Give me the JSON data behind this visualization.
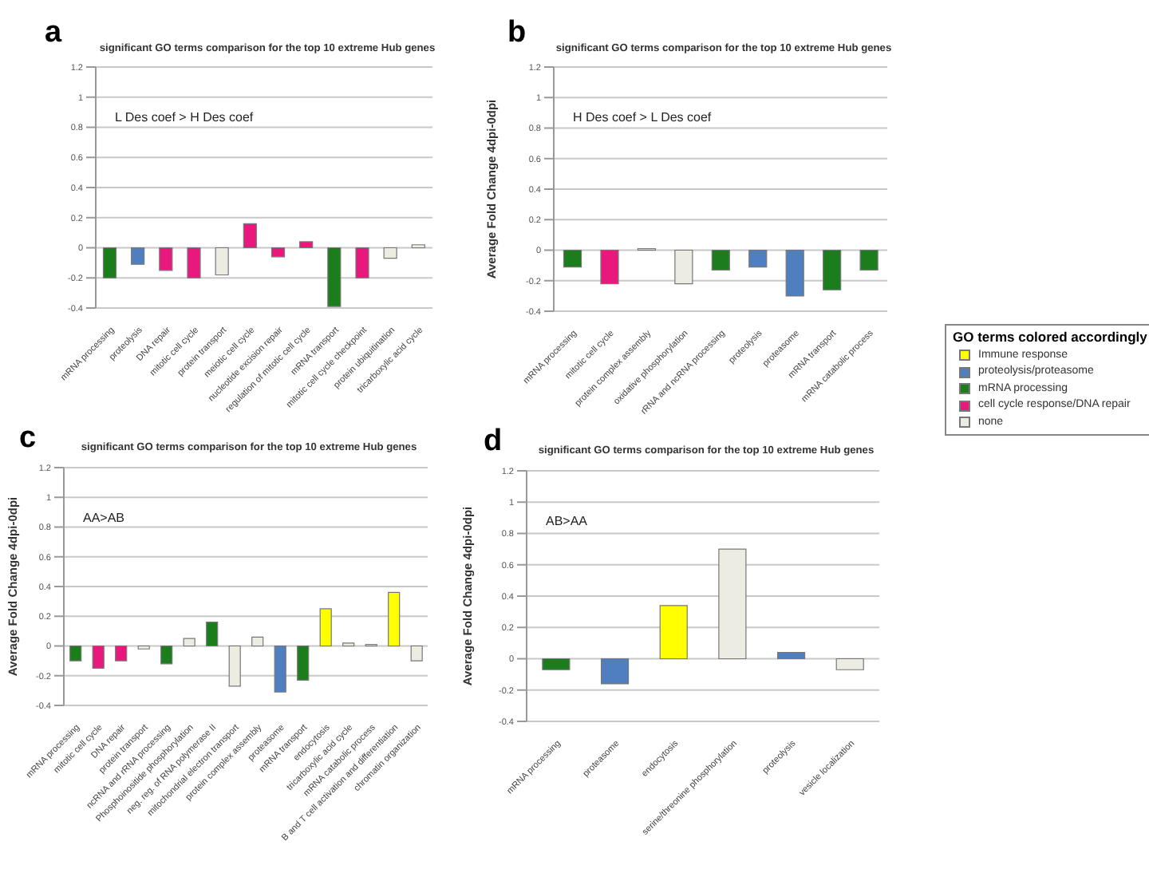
{
  "chart_data": [
    {
      "type": "bar",
      "title": "significant GO terms comparison for the top 10 extreme Hub genes",
      "annotations": [
        "a",
        "L Des coef > H Des coef"
      ],
      "categories": [
        "mRNA processing",
        "proteolysis",
        "DNA repair",
        "mitotic cell cycle",
        "protein transport",
        "meiotic cell cycle",
        "nucleotide excision repair",
        "regulation of mitotic cell cycle",
        "mRNA transport",
        "mitotic cell cycle checkpoint",
        "protein ubiquitination",
        "tricarboxylic acid cycle"
      ],
      "values": [
        -0.2,
        -0.11,
        -0.15,
        -0.2,
        -0.18,
        0.16,
        -0.06,
        0.04,
        -0.39,
        -0.2,
        -0.07,
        0.02
      ],
      "colors": [
        "#1b7d1b",
        "#4f7fbf",
        "#e8187c",
        "#e8187c",
        "#ececE2",
        "#e8187c",
        "#e8187c",
        "#e8187c",
        "#1b7d1b",
        "#e8187c",
        "#ececE2",
        "#ececE2"
      ],
      "ylim": [
        -0.4,
        1.2
      ],
      "yticks": [
        -0.4,
        -0.2,
        0,
        0.2,
        0.4,
        0.6,
        0.8,
        1,
        1.2
      ],
      "grid": "y",
      "legend": false
    },
    {
      "type": "bar",
      "title": "significant GO terms comparison for the top 10 extreme Hub genes",
      "ylabel": "Average Fold Change 4dpi-0dpi",
      "annotations": [
        "b",
        "H Des coef > L Des coef"
      ],
      "legend_title": "GO terms colored accordingly",
      "categories": [
        "mRNA processing",
        "mitotic cell cycle",
        "protein complex assembly",
        "oxidative phosphorylation",
        "rRNA and ncRNA processing",
        "proteolysis",
        "proteasome",
        "mRNA transport",
        "mRNA catabolic process"
      ],
      "stacked": true,
      "series": [
        {
          "name": "Immune response",
          "color": "#ffff00",
          "values": [
            null,
            null,
            null,
            null,
            null,
            null,
            null,
            null,
            null
          ]
        },
        {
          "name": "proteolysis/proteasome",
          "color": "#4f7fbf",
          "values": [
            null,
            null,
            null,
            null,
            null,
            -0.11,
            -0.3,
            null,
            null
          ]
        },
        {
          "name": "mRNA processing",
          "color": "#1b7d1b",
          "values": [
            -0.11,
            null,
            null,
            null,
            -0.13,
            null,
            null,
            -0.26,
            -0.13
          ]
        },
        {
          "name": "cell cycle response/DNA repair",
          "color": "#e8187c",
          "values": [
            null,
            -0.22,
            null,
            null,
            null,
            null,
            null,
            null,
            null
          ]
        },
        {
          "name": "none",
          "color": "#ececE2",
          "values": [
            null,
            null,
            0.01,
            -0.22,
            null,
            null,
            null,
            null,
            null
          ]
        }
      ],
      "ylim": [
        -0.4,
        1.2
      ],
      "yticks": [
        -0.4,
        -0.2,
        0,
        0.2,
        0.4,
        0.6,
        0.8,
        1,
        1.2
      ],
      "grid": "y",
      "legend": "right"
    },
    {
      "type": "bar",
      "title": "significant GO terms comparison for the top 10 extreme Hub genes",
      "ylabel": "Average Fold Change 4dpi-0dpi",
      "annotations": [
        "c",
        "AA>AB"
      ],
      "categories": [
        "mRNA processing",
        "mitotic cell cycle",
        "DNA repair",
        "protein transport",
        "ncRNA and rRNA processing",
        "Phosphoinositide phosphorylation",
        "neg. reg. of RNA polymerase II",
        "mitochondrial electron transport",
        "protein complex assembly",
        "proteasome",
        "mRNA transport",
        "endocytosis",
        "tricarboxylic acid cycle",
        "mRNA catabolic process",
        "B and T cell activation and differentiation",
        "chromatin organization"
      ],
      "values": [
        -0.1,
        -0.15,
        -0.1,
        -0.02,
        -0.12,
        0.05,
        0.16,
        -0.27,
        0.06,
        -0.31,
        -0.23,
        0.25,
        0.02,
        0.01,
        0.36,
        -0.1
      ],
      "colors": [
        "#1b7d1b",
        "#e8187c",
        "#e8187c",
        "#ececE2",
        "#1b7d1b",
        "#ececE2",
        "#1b7d1b",
        "#ececE2",
        "#ececE2",
        "#4f7fbf",
        "#1b7d1b",
        "#ffff00",
        "#ececE2",
        "#ececE2",
        "#ffff00",
        "#ececE2"
      ],
      "ylim": [
        -0.4,
        1.2
      ],
      "yticks": [
        -0.4,
        -0.2,
        0,
        0.2,
        0.4,
        0.6,
        0.8,
        1,
        1.2
      ],
      "grid": "y",
      "legend": false
    },
    {
      "type": "bar",
      "title": "significant GO terms comparison for the top 10 extreme Hub genes",
      "ylabel": "Average Fold Change 4dpi-0dpi",
      "annotations": [
        "d",
        "AB>AA"
      ],
      "categories": [
        "mRNA processing",
        "proteasome",
        "endocytosis",
        "serine/threonine phosphorylation",
        "proteolysis",
        "vesicle localization"
      ],
      "values": [
        -0.07,
        -0.16,
        0.34,
        0.7,
        0.04,
        -0.07
      ],
      "colors": [
        "#1b7d1b",
        "#4f7fbf",
        "#ffff00",
        "#ececE2",
        "#4f7fbf",
        "#ececE2"
      ],
      "ylim": [
        -0.4,
        1.2
      ],
      "yticks": [
        -0.4,
        -0.2,
        0,
        0.2,
        0.4,
        0.6,
        0.8,
        1,
        1.2
      ],
      "grid": "y",
      "legend": false
    }
  ]
}
